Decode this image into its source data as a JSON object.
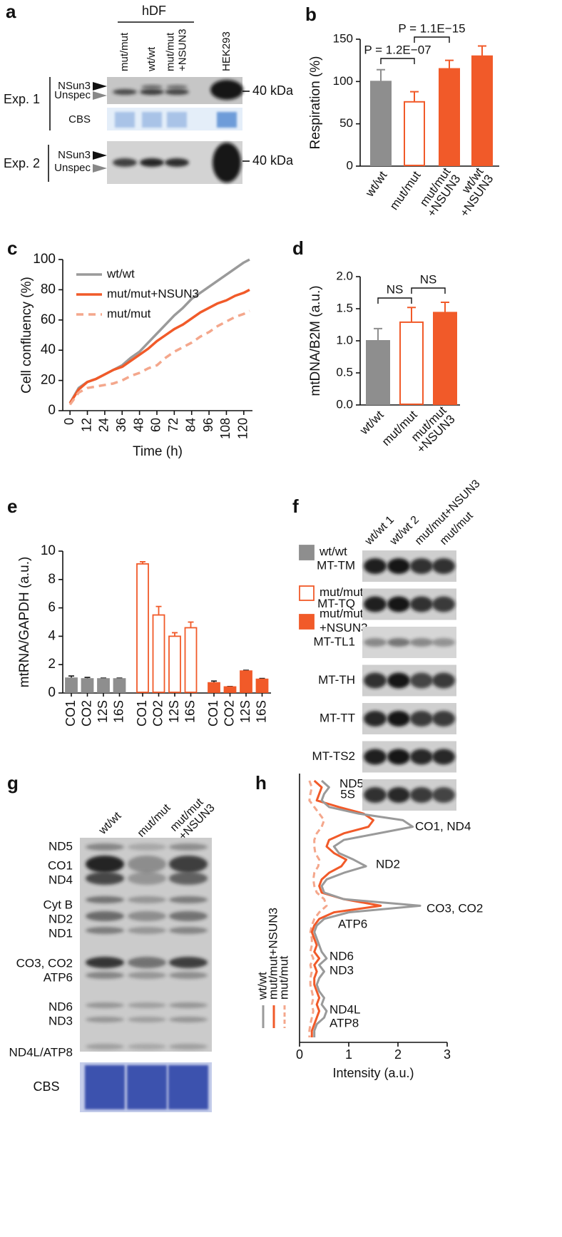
{
  "panel_a": {
    "label": "a",
    "group": "hDF",
    "lanes": [
      [
        "mut/mut"
      ],
      [
        "wt/wt"
      ],
      [
        "mut/mut",
        "+NSUN3"
      ],
      [
        "HEK293"
      ]
    ],
    "experiments": [
      {
        "name": "Exp. 1",
        "bands": [
          "NSun3",
          "Unspec"
        ],
        "marker": "40 kDa",
        "stain": "CBS"
      },
      {
        "name": "Exp. 2",
        "bands": [
          "NSun3",
          "Unspec"
        ],
        "marker": "40 kDa"
      }
    ]
  },
  "panel_f": {
    "label": "f",
    "lanes": [
      "wt/wt 1",
      "wt/wt 2",
      "mut/mut+NSUN3",
      "mut/mut"
    ],
    "rows": [
      "MT-TM",
      "MT-TQ",
      "MT-TL1",
      "MT-TH",
      "MT-TT",
      "MT-TS2",
      "5S"
    ]
  },
  "panel_g": {
    "label": "g",
    "lanes": [
      [
        "wt/wt"
      ],
      [
        "mut/mut"
      ],
      [
        "mut/mut",
        "+NSUN3"
      ]
    ],
    "bands": [
      "ND5",
      "CO1",
      "ND4",
      "Cyt B",
      "ND2",
      "ND1",
      "CO3, CO2",
      "ATP6",
      "ND6",
      "ND3",
      "ND4L/ATP8"
    ],
    "stain": "CBS"
  },
  "chart_data": [
    {
      "panel": "b",
      "type": "bar",
      "ylabel": "Respiration (%)",
      "categories": [
        [
          "wt/wt"
        ],
        [
          "mut/mut"
        ],
        [
          "mut/mut",
          "+NSUN3"
        ],
        [
          "wt/wt",
          "+NSUN3"
        ]
      ],
      "values": [
        100,
        76,
        115,
        130
      ],
      "errors": [
        14,
        12,
        10,
        12
      ],
      "colors": [
        "#8e8e8e",
        "#f15a29",
        "#f15a29",
        "#f15a29"
      ],
      "open": [
        false,
        true,
        false,
        false
      ],
      "ylim": [
        0,
        150
      ],
      "yticks": [
        0,
        50,
        100,
        150
      ],
      "annotations": [
        "P = 1.2E−07",
        "P = 1.1E−15"
      ]
    },
    {
      "panel": "c",
      "type": "line",
      "xlabel": "Time (h)",
      "ylabel": "Cell confluency (%)",
      "x": [
        0,
        6,
        12,
        18,
        24,
        30,
        36,
        42,
        48,
        54,
        60,
        66,
        72,
        78,
        84,
        90,
        96,
        102,
        108,
        114,
        120,
        124
      ],
      "series": [
        {
          "name": "wt/wt",
          "color": "#9a9a9a",
          "style": "solid",
          "values": [
            5,
            15,
            19,
            21,
            24,
            27,
            30,
            35,
            39,
            45,
            51,
            57,
            63,
            68,
            74,
            78,
            82,
            86,
            90,
            94,
            98,
            100
          ]
        },
        {
          "name": "mut/mut+NSUN3",
          "color": "#f15a29",
          "style": "solid",
          "values": [
            5,
            14,
            19,
            21,
            24,
            27,
            29,
            33,
            37,
            41,
            46,
            50,
            54,
            57,
            61,
            65,
            68,
            71,
            73,
            76,
            78,
            80
          ]
        },
        {
          "name": "mut/mut",
          "color": "#f4a78c",
          "style": "dashed",
          "values": [
            4,
            12,
            15,
            16,
            17,
            18,
            20,
            23,
            25,
            28,
            30,
            35,
            39,
            42,
            45,
            49,
            52,
            56,
            59,
            62,
            64,
            66
          ]
        }
      ],
      "xlim": [
        -5,
        126
      ],
      "ylim": [
        0,
        100
      ],
      "xticks": [
        0,
        12,
        24,
        36,
        48,
        60,
        72,
        84,
        96,
        108,
        120
      ],
      "yticks": [
        0,
        20,
        40,
        60,
        80,
        100
      ],
      "legend": "upper left"
    },
    {
      "panel": "d",
      "type": "bar",
      "ylabel": "mtDNA/B2M (a.u.)",
      "categories": [
        [
          "wt/wt"
        ],
        [
          "mut/mut"
        ],
        [
          "mut/mut",
          "+NSUN3"
        ]
      ],
      "values": [
        1.0,
        1.29,
        1.44
      ],
      "errors": [
        0.19,
        0.23,
        0.16
      ],
      "colors": [
        "#8e8e8e",
        "#f15a29",
        "#f15a29"
      ],
      "open": [
        false,
        true,
        false
      ],
      "ylim": [
        0,
        2
      ],
      "yticks": [
        {
          "value": 0,
          "label": "0.0"
        },
        0.5,
        {
          "value": 1,
          "label": "1.0"
        },
        1.5,
        {
          "value": 2,
          "label": "2.0"
        }
      ],
      "annotations": [
        "NS",
        "NS"
      ]
    },
    {
      "panel": "e",
      "type": "grouped_bar",
      "ylabel": "mtRNA/GAPDH (a.u.)",
      "categories": [
        "CO1",
        "CO2",
        "12S",
        "16S"
      ],
      "series": [
        {
          "name": [
            "wt/wt"
          ],
          "color": "#8e8e8e",
          "open": false,
          "values": [
            1.05,
            1.0,
            1.0,
            1.0
          ],
          "errors": [
            0.15,
            0.1,
            0.05,
            0.05
          ]
        },
        {
          "name": [
            "mut/mut"
          ],
          "color": "#f15a29",
          "open": true,
          "values": [
            9.1,
            5.5,
            4.0,
            4.6
          ],
          "errors": [
            0.15,
            0.6,
            0.25,
            0.4
          ]
        },
        {
          "name": [
            "mut/mut",
            "+NSUN3"
          ],
          "color": "#f15a29",
          "open": false,
          "values": [
            0.72,
            0.43,
            1.55,
            0.97
          ],
          "errors": [
            0.12,
            0.03,
            0.05,
            0.05
          ]
        }
      ],
      "ylim": [
        0,
        10
      ],
      "yticks": [
        0,
        2,
        4,
        6,
        8,
        10
      ],
      "legend": "right"
    },
    {
      "panel": "h",
      "type": "profile",
      "xlabel": "Intensity (a.u.)",
      "xlim": [
        0,
        3
      ],
      "xticks": [
        0,
        1,
        2,
        3
      ],
      "series": [
        {
          "name": "wt/wt",
          "color": "#9a9a9a",
          "style": "solid",
          "values": [
            0.45,
            0.6,
            0.5,
            0.45,
            0.6,
            1.2,
            2.1,
            2.3,
            1.6,
            0.9,
            0.7,
            0.8,
            1.1,
            1.35,
            0.9,
            0.55,
            0.45,
            0.5,
            0.9,
            2.45,
            1.0,
            0.5,
            0.35,
            0.3,
            0.35,
            0.4,
            0.45,
            0.55,
            0.4,
            0.5,
            0.4,
            0.35,
            0.4,
            0.5,
            0.45,
            0.55,
            0.5,
            0.35,
            0.3,
            0.3
          ]
        },
        {
          "name": "mut/mut+NSUN3",
          "color": "#f15a29",
          "style": "solid",
          "values": [
            0.3,
            0.45,
            0.4,
            0.35,
            0.8,
            1.3,
            1.5,
            1.4,
            0.9,
            0.6,
            0.55,
            0.7,
            0.95,
            0.85,
            0.6,
            0.45,
            0.4,
            0.45,
            0.9,
            1.65,
            0.7,
            0.4,
            0.3,
            0.25,
            0.3,
            0.35,
            0.3,
            0.4,
            0.3,
            0.35,
            0.3,
            0.3,
            0.35,
            0.4,
            0.35,
            0.4,
            0.35,
            0.3,
            0.25,
            0.25
          ]
        },
        {
          "name": "mut/mut",
          "color": "#f4a78c",
          "style": "dashed",
          "values": [
            0.2,
            0.25,
            0.22,
            0.2,
            0.3,
            0.4,
            0.5,
            0.45,
            0.35,
            0.3,
            0.3,
            0.32,
            0.4,
            0.38,
            0.3,
            0.28,
            0.3,
            0.35,
            0.5,
            0.55,
            0.4,
            0.3,
            0.25,
            0.22,
            0.25,
            0.25,
            0.22,
            0.28,
            0.22,
            0.25,
            0.22,
            0.22,
            0.25,
            0.28,
            0.25,
            0.28,
            0.25,
            0.22,
            0.2,
            0.2
          ]
        }
      ],
      "annotations": [
        "ND5",
        "CO1, ND4",
        "ND2",
        "CO3, CO2",
        "ATP6",
        "ND6",
        "ND3",
        "ND4L",
        "ATP8"
      ],
      "legend": "left"
    }
  ]
}
